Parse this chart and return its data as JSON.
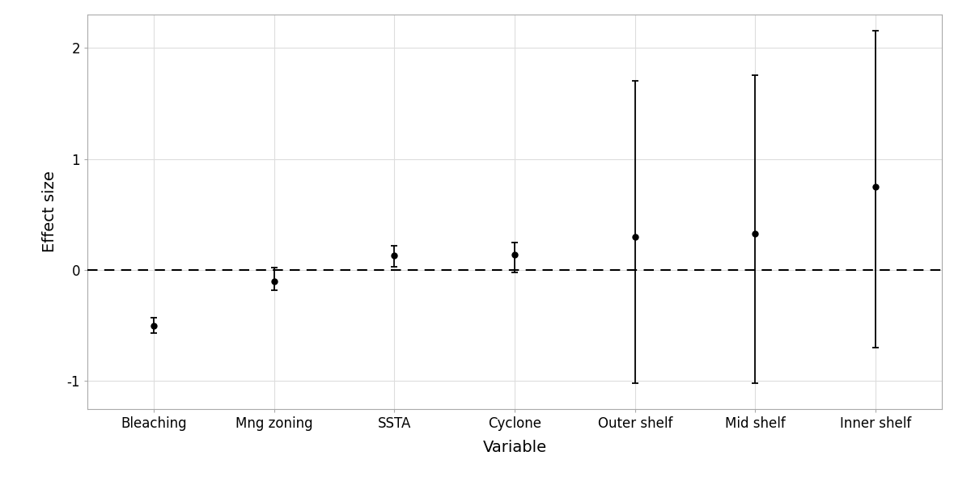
{
  "categories": [
    "Bleaching",
    "Mng zoning",
    "SSTA",
    "Cyclone",
    "Outer shelf",
    "Mid shelf",
    "Inner shelf"
  ],
  "means": [
    -0.5,
    -0.1,
    0.13,
    0.14,
    0.3,
    0.33,
    0.75
  ],
  "ci_lower": [
    -0.57,
    -0.18,
    0.03,
    -0.02,
    -1.02,
    -1.02,
    -0.7
  ],
  "ci_upper": [
    -0.43,
    0.02,
    0.22,
    0.25,
    1.7,
    1.75,
    2.15
  ],
  "xlabel": "Variable",
  "ylabel": "Effect size",
  "ylim": [
    -1.25,
    2.3
  ],
  "yticks": [
    -1,
    0,
    1,
    2
  ],
  "background_color": "#ffffff",
  "plot_bg_color": "#ffffff",
  "dot_color": "#000000",
  "line_color": "#000000",
  "dashed_color": "#000000",
  "grid_color": "#dddddd",
  "spine_color": "#aaaaaa",
  "dot_size": 5,
  "capsize": 3,
  "linewidth": 1.3,
  "label_fontsize": 14,
  "tick_fontsize": 12
}
